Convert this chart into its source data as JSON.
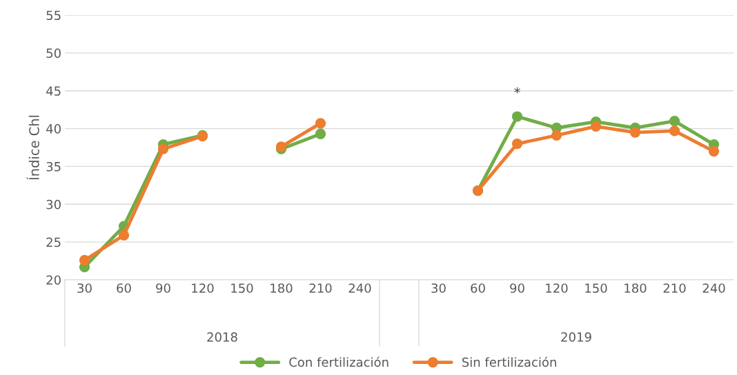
{
  "chart_data": {
    "type": "line",
    "ylabel": "Índice Chl",
    "categories": [
      "30",
      "60",
      "90",
      "120",
      "150",
      "180",
      "210",
      "240",
      null,
      "30",
      "60",
      "90",
      "120",
      "150",
      "180",
      "210",
      "240"
    ],
    "series": [
      {
        "name": "Con fertilización",
        "color": "#70ad47",
        "values": [
          21.7,
          27.1,
          37.9,
          39.1,
          null,
          37.3,
          39.3,
          null,
          null,
          null,
          31.8,
          41.6,
          40.1,
          40.9,
          40.1,
          41.0,
          37.9
        ],
        "value_labels": [
          null,
          null,
          null,
          null,
          null,
          null,
          null,
          null,
          null,
          null,
          null,
          "*",
          null,
          null,
          null,
          null,
          null
        ]
      },
      {
        "name": "Sin fertilización",
        "color": "#ed7d31",
        "values": [
          22.6,
          25.9,
          37.3,
          39.0,
          null,
          37.6,
          40.7,
          null,
          null,
          null,
          31.8,
          38.0,
          39.1,
          40.3,
          39.5,
          39.7,
          37.0
        ]
      }
    ],
    "ylim": [
      20,
      55
    ],
    "yticks": [
      20,
      25,
      30,
      35,
      40,
      45,
      50,
      55
    ],
    "grid": "y",
    "legend": "bottom",
    "marker": "circle",
    "line_style": "solid",
    "annotations": [
      "2018",
      "2019"
    ]
  }
}
